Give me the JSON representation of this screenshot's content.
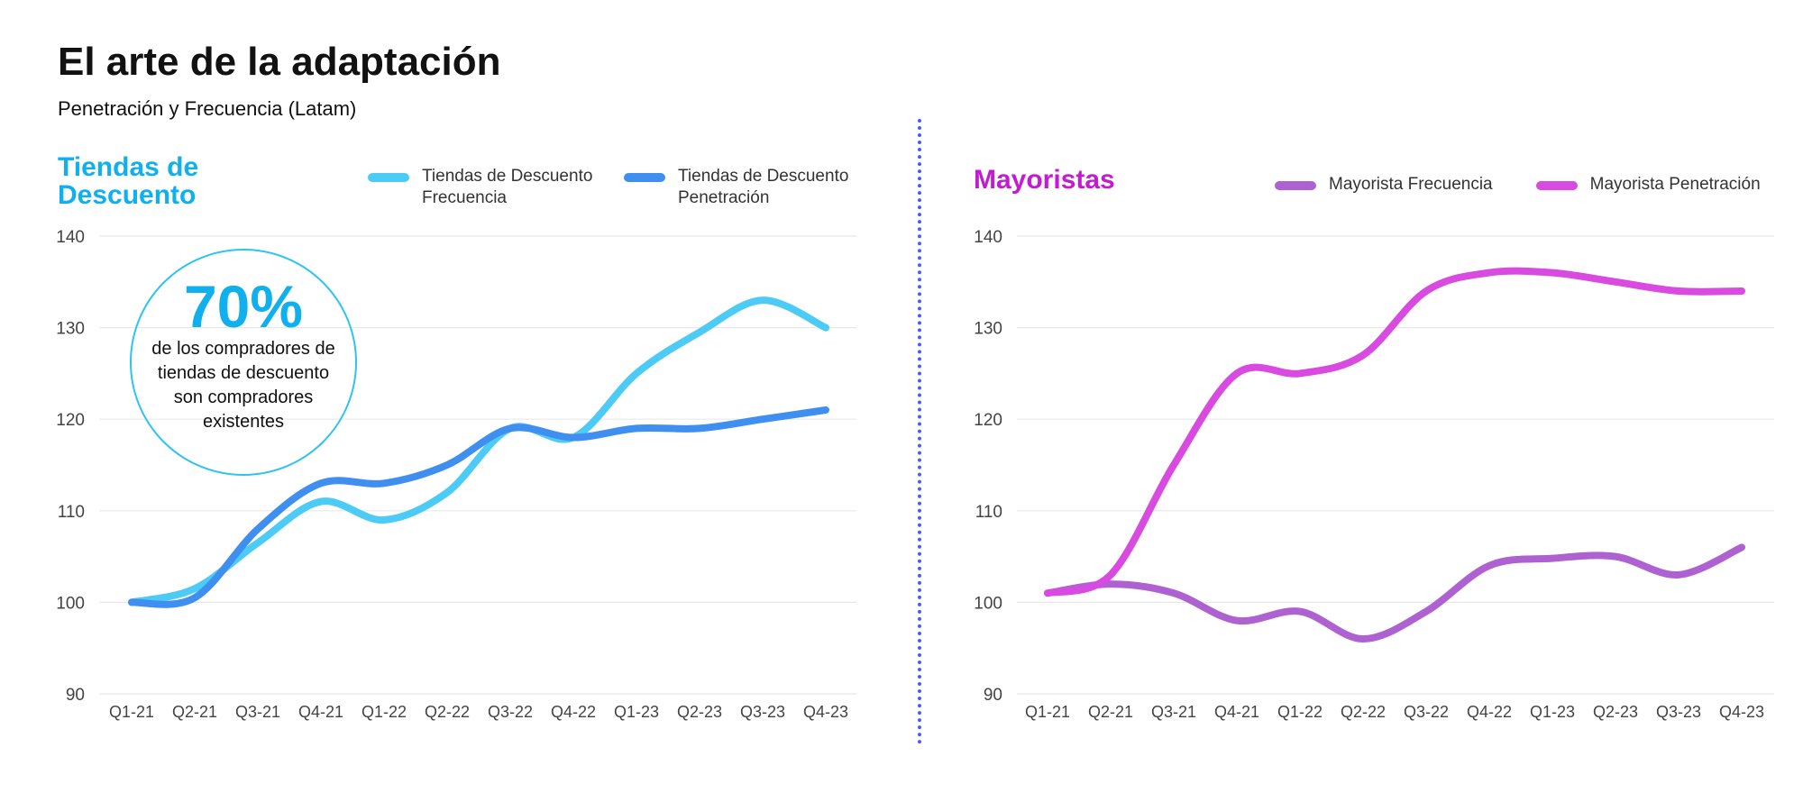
{
  "header": {
    "title": "El arte de la adaptación",
    "subtitle": "Penetración y Frecuencia (Latam)"
  },
  "colors": {
    "left_title": "#10b0ef",
    "right_title": "#c21bd0",
    "divider": "#4a5cff",
    "grid": "#e8e8e8",
    "axis_text": "#444444"
  },
  "callout": {
    "value": "70%",
    "text": "de los compradores de tiendas de descuento son compradores existentes"
  },
  "chart_data": [
    {
      "type": "line",
      "title": "Tiendas de Descuento",
      "title_color": "#10b0ef",
      "categories": [
        "Q1-21",
        "Q2-21",
        "Q3-21",
        "Q4-21",
        "Q1-22",
        "Q2-22",
        "Q3-22",
        "Q4-22",
        "Q1-23",
        "Q2-23",
        "Q3-23",
        "Q4-23"
      ],
      "y_ticks": [
        90,
        100,
        110,
        120,
        130,
        140
      ],
      "ylim": [
        90,
        140
      ],
      "grid": true,
      "legend_position": "top-right",
      "series": [
        {
          "name": "Tiendas de Descuento Frecuencia",
          "color": "#4dcbf7",
          "values": [
            100,
            101.5,
            106.5,
            111,
            109,
            112,
            119,
            118,
            125,
            129.5,
            133,
            130
          ]
        },
        {
          "name": "Tiendas de Descuento Penetración",
          "color": "#3f8ff0",
          "values": [
            100,
            100.5,
            108,
            113,
            113,
            115,
            119,
            118,
            119,
            119,
            120,
            121
          ]
        }
      ]
    },
    {
      "type": "line",
      "title": "Mayoristas",
      "title_color": "#c21bd0",
      "categories": [
        "Q1-21",
        "Q2-21",
        "Q3-21",
        "Q4-21",
        "Q1-22",
        "Q2-22",
        "Q3-22",
        "Q4-22",
        "Q1-23",
        "Q2-23",
        "Q3-23",
        "Q4-23"
      ],
      "y_ticks": [
        90,
        100,
        110,
        120,
        130,
        140
      ],
      "ylim": [
        90,
        140
      ],
      "grid": true,
      "legend_position": "top-right",
      "series": [
        {
          "name": "Mayorista Frecuencia",
          "color": "#ae62d2",
          "values": [
            101,
            102,
            101,
            98,
            99,
            96,
            99,
            104,
            104.8,
            105,
            103,
            106
          ]
        },
        {
          "name": "Mayorista Penetración",
          "color": "#d94ae0",
          "values": [
            101,
            103,
            115,
            125,
            125,
            127,
            134,
            136,
            136,
            135,
            134,
            134
          ]
        }
      ]
    }
  ]
}
